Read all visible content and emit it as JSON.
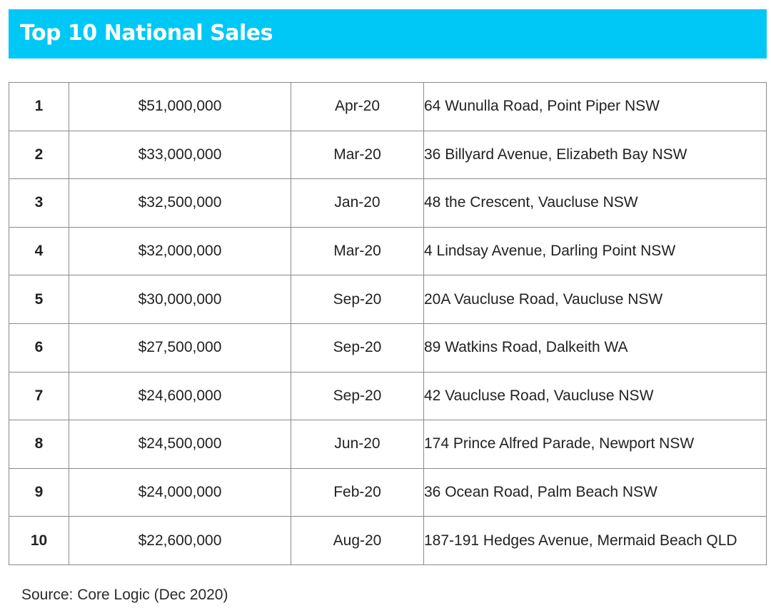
{
  "title": "Top 10 National Sales",
  "colors": {
    "banner": "#00c8f6",
    "banner_text": "#ffffff",
    "grid": "#8a8a8a"
  },
  "rows": [
    {
      "rank": "1",
      "price": "$51,000,000",
      "date": "Apr-20",
      "address": "64 Wunulla Road, Point Piper NSW"
    },
    {
      "rank": "2",
      "price": "$33,000,000",
      "date": "Mar-20",
      "address": "36 Billyard Avenue, Elizabeth Bay NSW"
    },
    {
      "rank": "3",
      "price": "$32,500,000",
      "date": "Jan-20",
      "address": "48 the Crescent, Vaucluse NSW"
    },
    {
      "rank": "4",
      "price": "$32,000,000",
      "date": "Mar-20",
      "address": "4 Lindsay Avenue, Darling Point NSW"
    },
    {
      "rank": "5",
      "price": "$30,000,000",
      "date": "Sep-20",
      "address": "20A Vaucluse Road, Vaucluse NSW"
    },
    {
      "rank": "6",
      "price": "$27,500,000",
      "date": "Sep-20",
      "address": "89 Watkins Road, Dalkeith WA"
    },
    {
      "rank": "7",
      "price": "$24,600,000",
      "date": "Sep-20",
      "address": "42 Vaucluse Road, Vaucluse NSW"
    },
    {
      "rank": "8",
      "price": "$24,500,000",
      "date": "Jun-20",
      "address": "174 Prince Alfred Parade, Newport NSW"
    },
    {
      "rank": "9",
      "price": "$24,000,000",
      "date": "Feb-20",
      "address": "36 Ocean Road, Palm Beach NSW"
    },
    {
      "rank": "10",
      "price": "$22,600,000",
      "date": "Aug-20",
      "address": "187-191 Hedges Avenue, Mermaid Beach QLD"
    }
  ],
  "source": "Source: Core Logic (Dec 2020)"
}
